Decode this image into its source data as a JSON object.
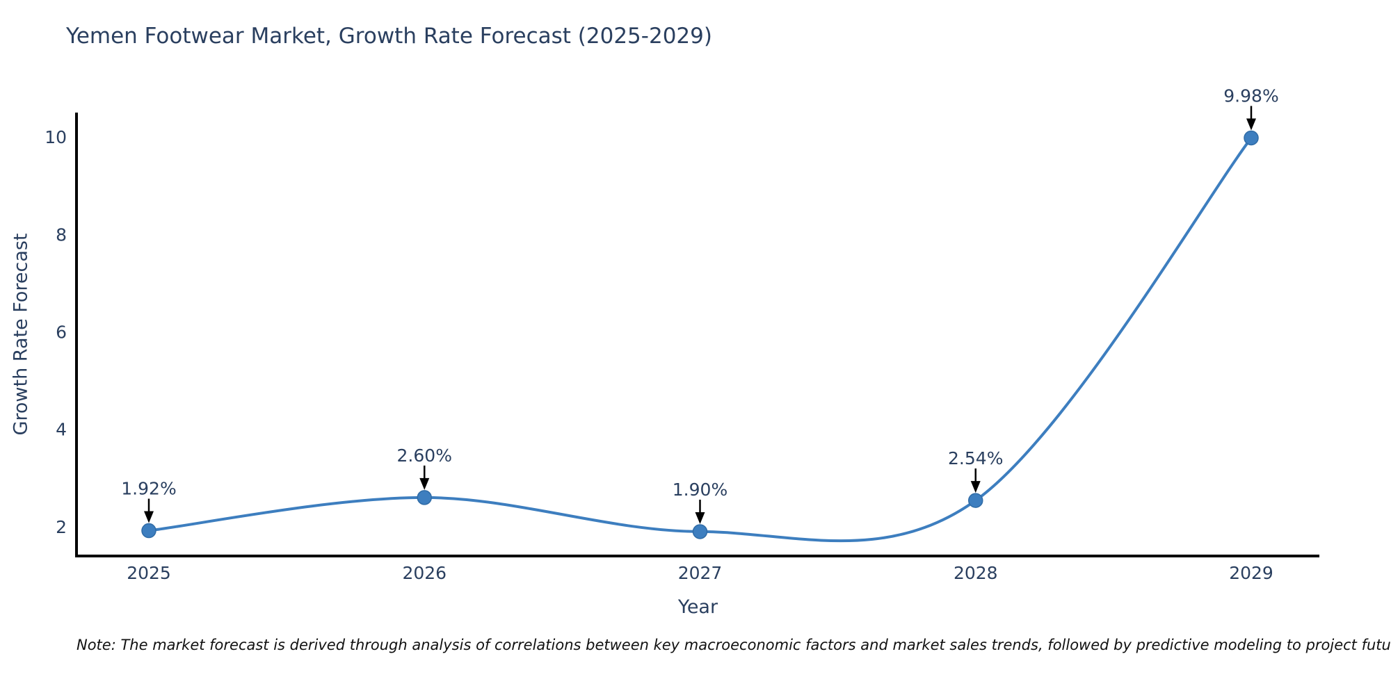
{
  "note": "Note: The market forecast is derived through analysis of correlations between key macroeconomic factors and market sales trends, followed by predictive modeling to project future sales.",
  "chart_data": {
    "type": "line",
    "title": "Yemen Footwear Market, Growth Rate Forecast (2025-2029)",
    "xlabel": "Year",
    "ylabel": "Growth Rate Forecast",
    "categories": [
      "2025",
      "2026",
      "2027",
      "2028",
      "2029"
    ],
    "values": [
      1.92,
      2.6,
      1.9,
      2.54,
      9.98
    ],
    "point_labels": [
      "1.92%",
      "2.60%",
      "1.90%",
      "2.54%",
      "9.98%"
    ],
    "yticks": [
      2,
      4,
      6,
      8,
      10
    ],
    "ylim": [
      1.4,
      10.5
    ],
    "line_shape": "spline",
    "markers": true,
    "grid": false,
    "legend": "none",
    "colors": {
      "line": "#3d7ebf",
      "marker": "#3d7ebf",
      "marker_edge": "#2f6ba6",
      "axis_line": "#000000",
      "text": "#2a3f5f",
      "annotation_text": "#2a3f5f",
      "annotation_arrow": "#000000",
      "note_text": "#111111"
    }
  }
}
